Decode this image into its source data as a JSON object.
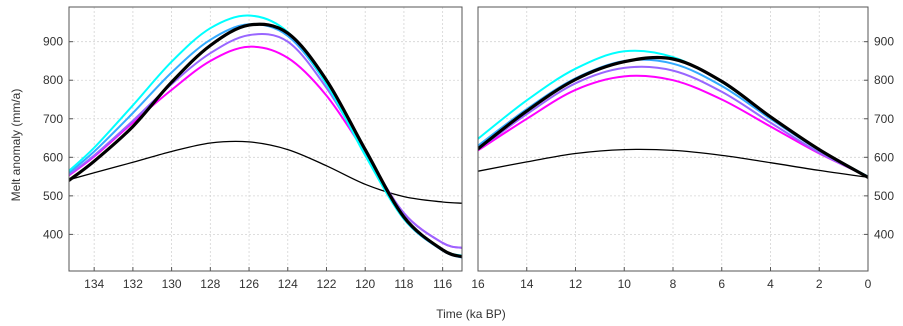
{
  "chart_data": [
    {
      "type": "line",
      "panel": "left",
      "xlabel": "",
      "ylabel": "Melt anomaly (mm/a)",
      "xlim": [
        135.3,
        115.0
      ],
      "ylim": [
        305,
        990
      ],
      "xticks": [
        134,
        132,
        130,
        128,
        126,
        124,
        122,
        120,
        118,
        116
      ],
      "yticks": [
        400,
        500,
        600,
        700,
        800,
        900
      ],
      "grid": true,
      "series": [
        {
          "color": "#000000",
          "width": 1.3,
          "x": [
            135.3,
            134,
            132,
            130,
            128,
            126,
            124,
            122,
            120,
            118,
            116,
            115
          ],
          "y": [
            542,
            560,
            587,
            615,
            637,
            640,
            620,
            578,
            530,
            498,
            484,
            481
          ]
        },
        {
          "color": "#ff00ff",
          "width": 2.0,
          "x": [
            135.3,
            134,
            132,
            130,
            128,
            126,
            124,
            122,
            120,
            118,
            116,
            115
          ],
          "y": [
            553,
            602,
            690,
            775,
            850,
            887,
            858,
            760,
            612,
            455,
            378,
            365
          ]
        },
        {
          "color": "#9966ff",
          "width": 2.0,
          "x": [
            135.3,
            134,
            132,
            130,
            128,
            126,
            124,
            122,
            120,
            118,
            116,
            115
          ],
          "y": [
            555,
            605,
            695,
            790,
            870,
            917,
            900,
            780,
            615,
            455,
            378,
            365
          ]
        },
        {
          "color": "#33aaff",
          "width": 2.0,
          "x": [
            135.3,
            134,
            132,
            130,
            128,
            126,
            124,
            122,
            120,
            118,
            116,
            115
          ],
          "y": [
            560,
            615,
            715,
            820,
            905,
            945,
            915,
            790,
            610,
            440,
            358,
            340
          ]
        },
        {
          "color": "#00ffff",
          "width": 2.0,
          "x": [
            135.3,
            134,
            132,
            130,
            128,
            126,
            124,
            122,
            120,
            118,
            116,
            115
          ],
          "y": [
            565,
            625,
            735,
            848,
            935,
            968,
            925,
            790,
            605,
            440,
            360,
            345
          ]
        },
        {
          "color": "#000000",
          "width": 3.2,
          "x": [
            135.3,
            134,
            132,
            130,
            128,
            126,
            124,
            122,
            120,
            118,
            116,
            115
          ],
          "y": [
            540,
            590,
            680,
            795,
            890,
            943,
            922,
            800,
            620,
            445,
            360,
            342
          ]
        }
      ]
    },
    {
      "type": "line",
      "panel": "right",
      "xlabel": "Time (ka BP)",
      "ylabel": "",
      "xlim": [
        16,
        0
      ],
      "ylim": [
        305,
        990
      ],
      "xticks": [
        16,
        14,
        12,
        10,
        8,
        6,
        4,
        2,
        0
      ],
      "yticks": [
        400,
        500,
        600,
        700,
        800,
        900
      ],
      "grid": true,
      "series": [
        {
          "color": "#000000",
          "width": 1.3,
          "x": [
            16,
            14,
            12,
            10,
            8,
            6,
            4,
            2,
            0
          ],
          "y": [
            564,
            588,
            610,
            620,
            618,
            605,
            586,
            566,
            548
          ]
        },
        {
          "color": "#ff00ff",
          "width": 2.0,
          "x": [
            16,
            14,
            12,
            10,
            8,
            6,
            4,
            2,
            0
          ],
          "y": [
            618,
            700,
            775,
            810,
            800,
            750,
            680,
            610,
            550
          ]
        },
        {
          "color": "#9966ff",
          "width": 2.0,
          "x": [
            16,
            14,
            12,
            10,
            8,
            6,
            4,
            2,
            0
          ],
          "y": [
            620,
            712,
            792,
            832,
            825,
            770,
            690,
            612,
            550
          ]
        },
        {
          "color": "#33aaff",
          "width": 2.0,
          "x": [
            16,
            14,
            12,
            10,
            8,
            6,
            4,
            2,
            0
          ],
          "y": [
            630,
            725,
            805,
            850,
            843,
            785,
            700,
            618,
            550
          ]
        },
        {
          "color": "#00ffff",
          "width": 2.0,
          "x": [
            16,
            14,
            12,
            10,
            8,
            6,
            4,
            2,
            0
          ],
          "y": [
            648,
            748,
            830,
            875,
            860,
            795,
            705,
            620,
            550
          ]
        },
        {
          "color": "#000000",
          "width": 3.2,
          "x": [
            16,
            14,
            12,
            10,
            8,
            6,
            4,
            2,
            0
          ],
          "y": [
            622,
            720,
            802,
            848,
            855,
            797,
            705,
            620,
            548
          ]
        }
      ]
    }
  ]
}
